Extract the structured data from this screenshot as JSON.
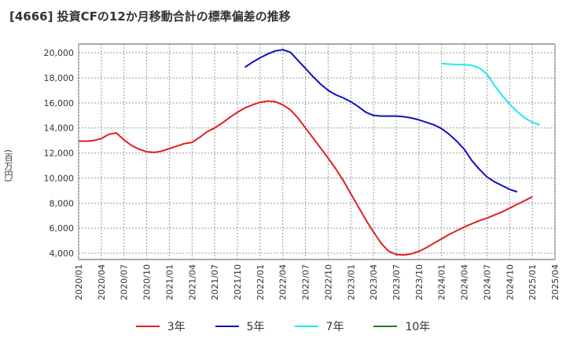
{
  "chart_data": {
    "type": "line",
    "title": "[4666]  投資CFの12か月移動合計の標準偏差の推移",
    "ylabel": "(百万円)",
    "xlabel": "",
    "ylim": [
      3500,
      20700
    ],
    "yticks": [
      4000,
      6000,
      8000,
      10000,
      12000,
      14000,
      16000,
      18000,
      20000
    ],
    "ytick_labels": [
      "4,000",
      "6,000",
      "8,000",
      "10,000",
      "12,000",
      "14,000",
      "16,000",
      "18,000",
      "20,000"
    ],
    "xtick_labels": [
      "2020/01",
      "2020/04",
      "2020/07",
      "2020/10",
      "2021/01",
      "2021/04",
      "2021/07",
      "2021/10",
      "2022/01",
      "2022/04",
      "2022/07",
      "2022/10",
      "2023/01",
      "2023/04",
      "2023/07",
      "2023/10",
      "2024/01",
      "2024/04",
      "2024/07",
      "2024/10",
      "2025/01",
      "2025/04"
    ],
    "x_start": "2020/01",
    "x_end": "2025/04",
    "grid": true,
    "legend_position": "bottom",
    "series": [
      {
        "name": "3年",
        "color": "#e02020",
        "start": "2020/01",
        "values": [
          12950,
          12950,
          13000,
          13150,
          13500,
          13600,
          13050,
          12600,
          12300,
          12100,
          12050,
          12150,
          12350,
          12550,
          12750,
          12850,
          13250,
          13700,
          14000,
          14400,
          14850,
          15250,
          15600,
          15850,
          16050,
          16150,
          16100,
          15850,
          15450,
          14800,
          14000,
          13200,
          12400,
          11600,
          10750,
          9800,
          8750,
          7700,
          6650,
          5700,
          4800,
          4150,
          3900,
          3850,
          3950,
          4150,
          4450,
          4800,
          5150,
          5500,
          5800,
          6100,
          6350,
          6600,
          6800,
          7050,
          7300,
          7600,
          7900,
          8200,
          8500
        ]
      },
      {
        "name": "5年",
        "color": "#1010c0",
        "start": "2021/11",
        "values": [
          18850,
          19250,
          19600,
          19900,
          20150,
          20250,
          20050,
          19400,
          18750,
          18100,
          17500,
          17000,
          16650,
          16400,
          16100,
          15700,
          15250,
          15000,
          14950,
          14950,
          14950,
          14900,
          14800,
          14650,
          14450,
          14250,
          13950,
          13500,
          12950,
          12300,
          11400,
          10700,
          10100,
          9700,
          9400,
          9100,
          8900
        ]
      },
      {
        "name": "7年",
        "color": "#20e8f0",
        "start": "2024/01",
        "values": [
          19150,
          19100,
          19050,
          19050,
          19000,
          18800,
          18300,
          17400,
          16600,
          15900,
          15300,
          14800,
          14450,
          14250
        ]
      },
      {
        "name": "10年",
        "color": "#208020",
        "start": "2025/01",
        "values": []
      }
    ]
  }
}
